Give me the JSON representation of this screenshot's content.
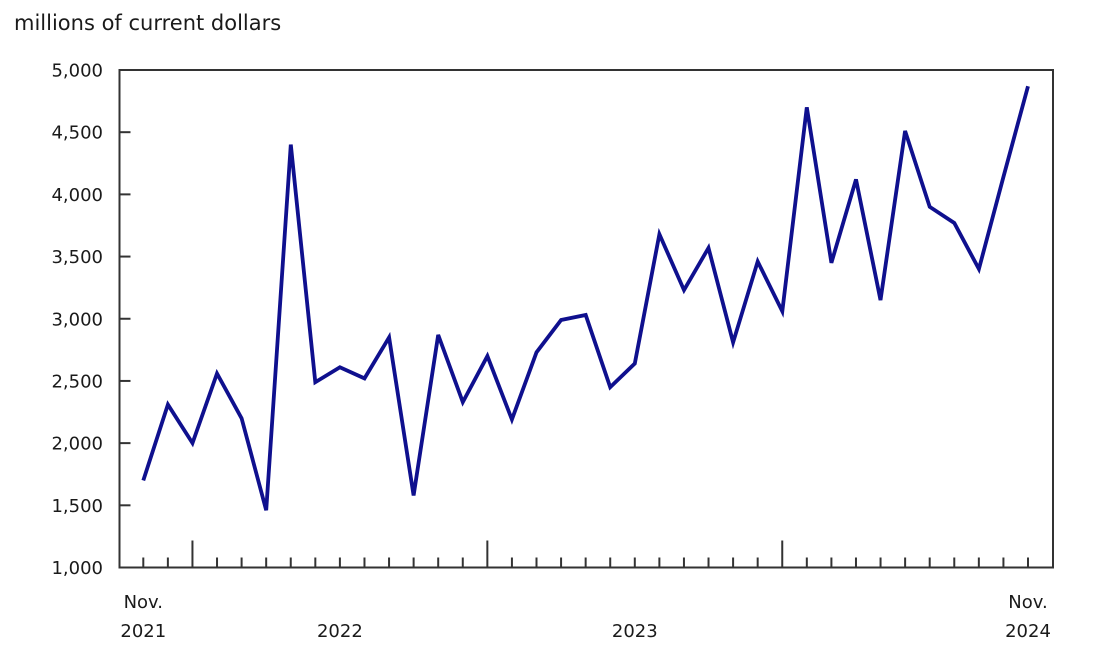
{
  "title": "millions of current dollars",
  "chart_data": {
    "type": "line",
    "title": "millions of current dollars",
    "series_name": "monthly value, millions of current dollars",
    "x": [
      "Nov. 2021",
      "Dec. 2021",
      "Jan. 2022",
      "Feb. 2022",
      "Mar. 2022",
      "Apr. 2022",
      "May 2022",
      "Jun. 2022",
      "Jul. 2022",
      "Aug. 2022",
      "Sep. 2022",
      "Oct. 2022",
      "Nov. 2022",
      "Dec. 2022",
      "Jan. 2023",
      "Feb. 2023",
      "Mar. 2023",
      "Apr. 2023",
      "May 2023",
      "Jun. 2023",
      "Jul. 2023",
      "Aug. 2023",
      "Sep. 2023",
      "Oct. 2023",
      "Nov. 2023",
      "Dec. 2023",
      "Jan. 2024",
      "Feb. 2024",
      "Mar. 2024",
      "Apr. 2024",
      "May 2024",
      "Jun. 2024",
      "Jul. 2024",
      "Aug. 2024",
      "Sep. 2024",
      "Oct. 2024",
      "Nov. 2024"
    ],
    "values": [
      1700,
      2310,
      2000,
      2560,
      2200,
      1460,
      4400,
      2490,
      2610,
      2520,
      2850,
      1580,
      2870,
      2330,
      2700,
      2190,
      2730,
      2990,
      3030,
      2450,
      2640,
      3680,
      3230,
      3570,
      2810,
      3460,
      3060,
      4700,
      3450,
      4120,
      3150,
      4510,
      3900,
      3770,
      3400,
      4140,
      4870
    ],
    "ylim": [
      1000,
      5000
    ],
    "yticks": [
      {
        "value": 5000,
        "label": "5,000"
      },
      {
        "value": 4500,
        "label": "4,500"
      },
      {
        "value": 4000,
        "label": "4,000"
      },
      {
        "value": 3500,
        "label": "3,500"
      },
      {
        "value": 3000,
        "label": "3,000"
      },
      {
        "value": 2500,
        "label": "2,500"
      },
      {
        "value": 2000,
        "label": "2,000"
      },
      {
        "value": 1500,
        "label": "1,500"
      },
      {
        "value": 1000,
        "label": "1,000"
      }
    ],
    "x_axis_labels": [
      {
        "top": "Nov.",
        "bottom": "2021",
        "pos": "point",
        "index": 0
      },
      {
        "top": "",
        "bottom": "2022",
        "pos": "mid",
        "from": 2,
        "to": 14
      },
      {
        "top": "",
        "bottom": "2023",
        "pos": "mid",
        "from": 14,
        "to": 26
      },
      {
        "top": "Nov.",
        "bottom": "2024",
        "pos": "point",
        "index": 36
      }
    ],
    "grid": false,
    "legend": "none",
    "line_color": "#0f108e",
    "axis_color": "#333333",
    "text_color": "#1a1a1a"
  }
}
